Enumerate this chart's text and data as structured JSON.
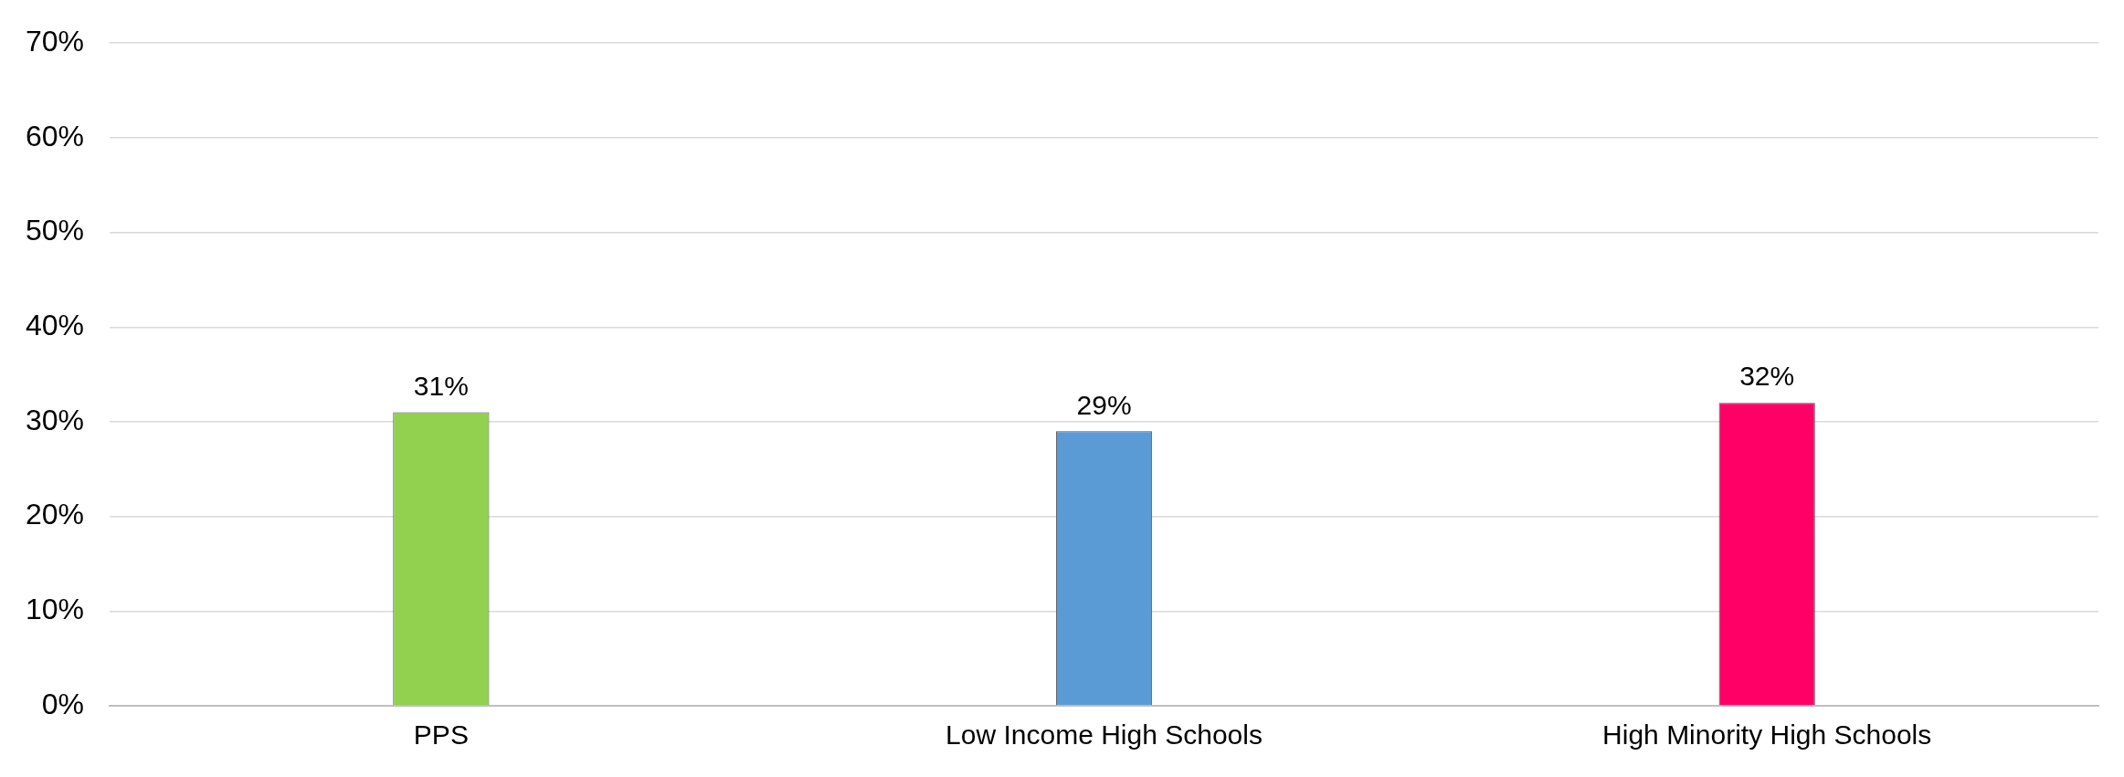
{
  "chart_data": {
    "type": "bar",
    "categories": [
      "PPS",
      "Low Income High Schools",
      "High Minority High Schools"
    ],
    "values": [
      31,
      29,
      32
    ],
    "colors": [
      "#92d050",
      "#5b9bd5",
      "#ff0066"
    ],
    "value_labels": [
      "31%",
      "29%",
      "32%"
    ],
    "ylim": [
      0,
      70
    ],
    "yticks": [
      {
        "value": 0,
        "label": "0%"
      },
      {
        "value": 10,
        "label": "10%"
      },
      {
        "value": 20,
        "label": "20%"
      },
      {
        "value": 30,
        "label": "30%"
      },
      {
        "value": 40,
        "label": "40%"
      },
      {
        "value": 50,
        "label": "50%"
      },
      {
        "value": 60,
        "label": "60%"
      },
      {
        "value": 70,
        "label": "70%"
      }
    ],
    "grid": "y",
    "legend": false
  }
}
